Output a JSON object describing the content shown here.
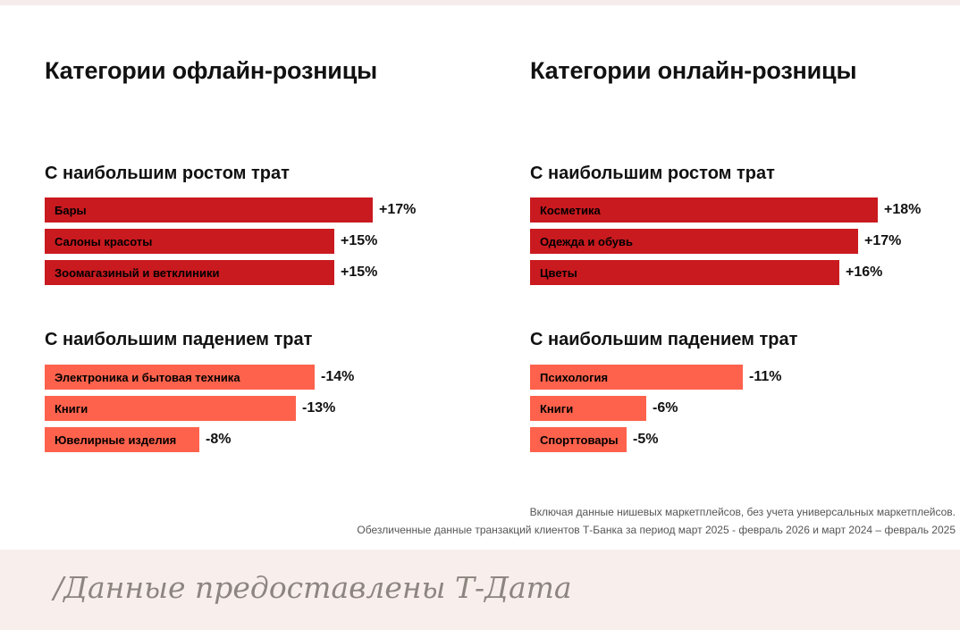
{
  "colors": {
    "growth_bar": "#c91a1f",
    "decline_bar": "#ff624c",
    "text": "#111111",
    "footnote": "#555555",
    "watermark": "#8d8580",
    "watermark_band": "#f8efed"
  },
  "chart_data": [
    {
      "type": "bar",
      "orientation": "horizontal",
      "title": "Категории офлайн-розницы",
      "groups": [
        {
          "key": "growth",
          "title": "С наибольшим ростом трат",
          "categories": [
            "Бары",
            "Салоны красоты",
            "Зоомагазиный и ветклиники"
          ],
          "values": [
            17,
            15,
            15
          ],
          "value_labels": [
            "+17%",
            "+15%",
            "+15%"
          ]
        },
        {
          "key": "decline",
          "title": "С наибольшим падением трат",
          "categories": [
            "Электроника и бытовая техника",
            "Книги",
            "Ювелирные изделия"
          ],
          "values": [
            -14,
            -13,
            -8
          ],
          "value_labels": [
            "-14%",
            "-13%",
            "-8%"
          ]
        }
      ]
    },
    {
      "type": "bar",
      "orientation": "horizontal",
      "title": "Категории онлайн-розницы",
      "groups": [
        {
          "key": "growth",
          "title": "С наибольшим ростом трат",
          "categories": [
            "Косметика",
            "Одежда и обувь",
            "Цветы"
          ],
          "values": [
            18,
            17,
            16
          ],
          "value_labels": [
            "+18%",
            "+17%",
            "+16%"
          ]
        },
        {
          "key": "decline",
          "title": "С наибольшим падением трат",
          "categories": [
            "Психология",
            "Книги",
            "Спорттовары"
          ],
          "values": [
            -11,
            -6,
            -5
          ],
          "value_labels": [
            "-11%",
            "-6%",
            "-5%"
          ]
        }
      ]
    }
  ],
  "footnotes": [
    "Включая данные нишевых маркетплейсов, без учета универсальных маркетплейсов.",
    "Обезличенные данные транзакций клиентов Т-Банка за период март 2025 - февраль 2026 и март 2024 – февраль 2025"
  ],
  "watermark": "/Данные предоставлены Т-Дата"
}
